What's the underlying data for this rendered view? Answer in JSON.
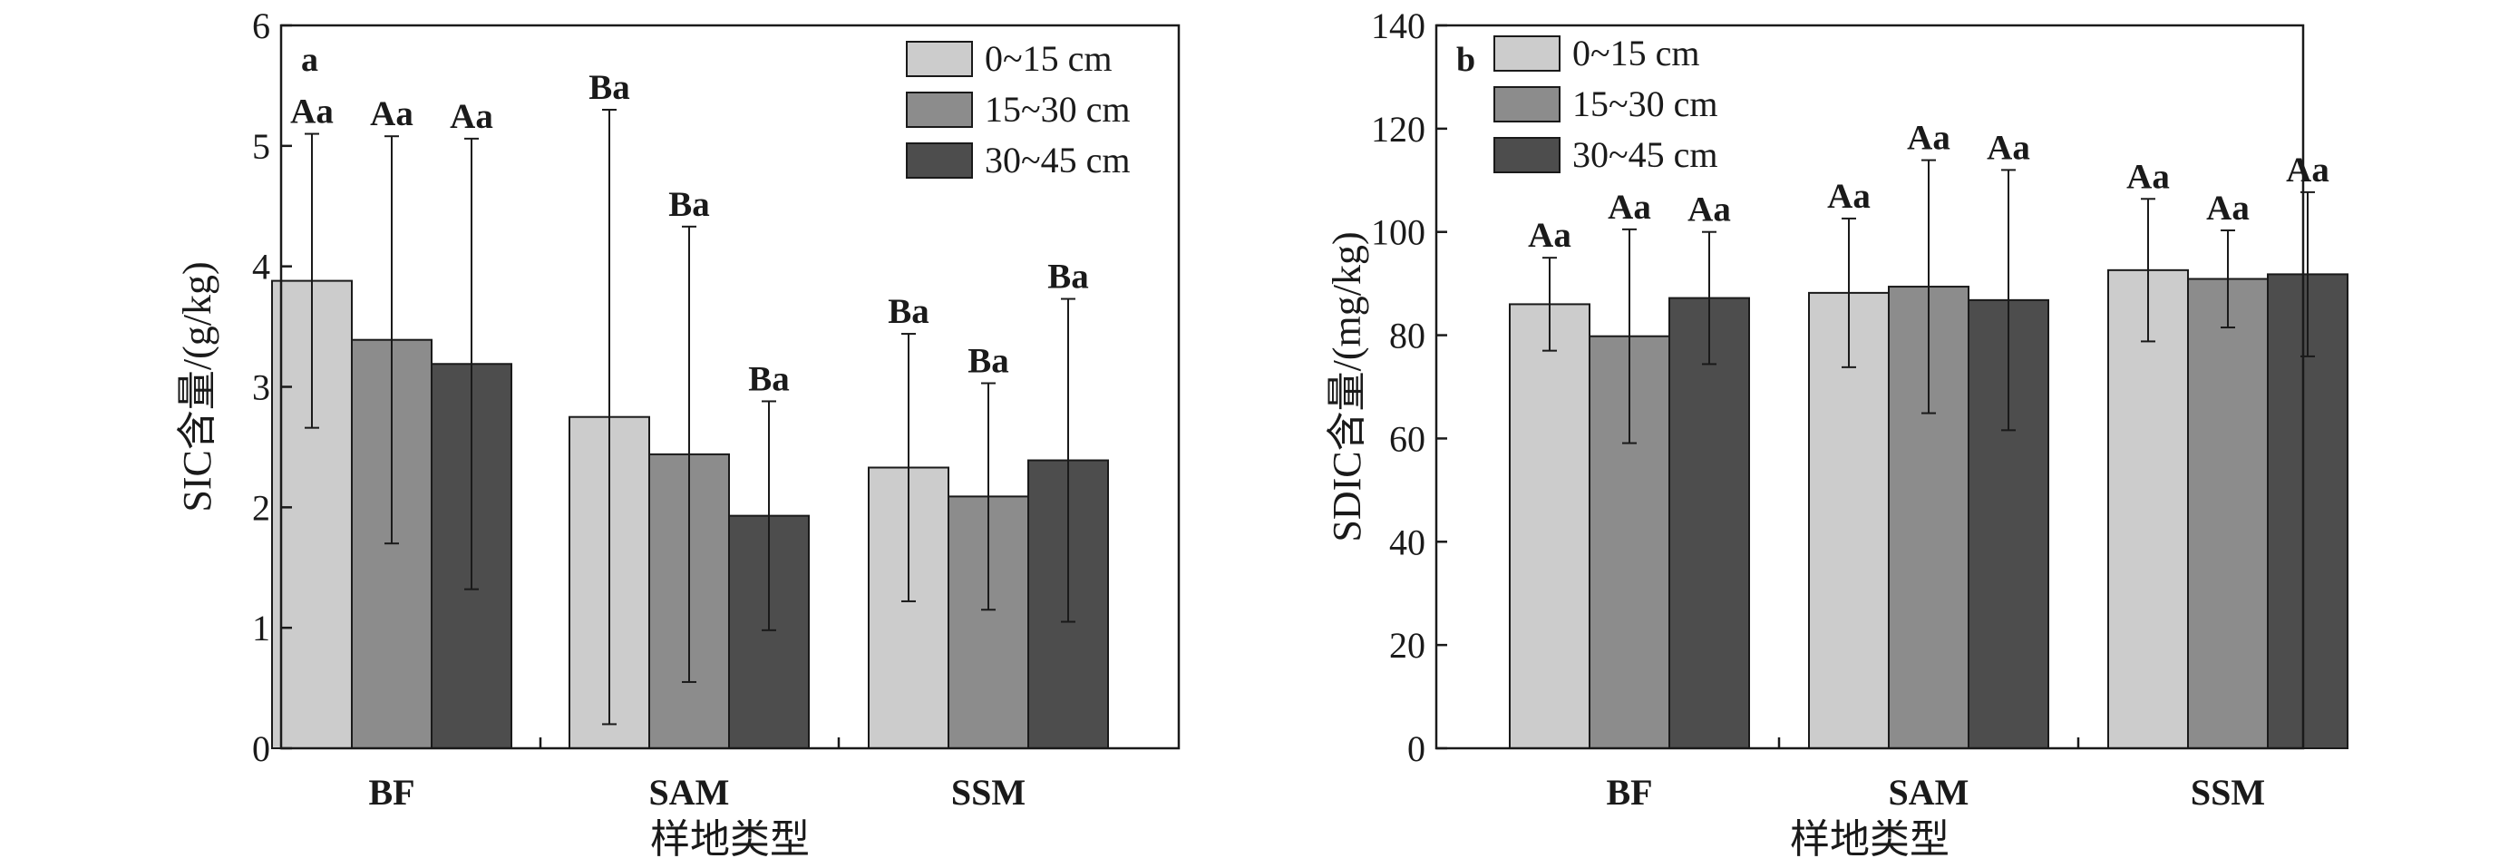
{
  "chart_data": [
    {
      "type": "bar",
      "panel_label": "a",
      "categories": [
        "BF",
        "SAM",
        "SSM"
      ],
      "series": [
        {
          "name": "0~15 cm",
          "color": "#cccccc",
          "values": [
            3.88,
            2.75,
            2.33
          ],
          "error": [
            1.22,
            2.55,
            1.11
          ]
        },
        {
          "name": "15~30 cm",
          "color": "#8c8c8c",
          "values": [
            3.39,
            2.44,
            2.09
          ],
          "error": [
            1.69,
            1.89,
            0.94
          ]
        },
        {
          "name": "30~45 cm",
          "color": "#4d4d4d",
          "values": [
            3.19,
            1.93,
            2.39
          ],
          "error": [
            1.87,
            0.95,
            1.34
          ]
        }
      ],
      "significance": [
        [
          "Aa",
          "Aa",
          "Aa"
        ],
        [
          "Ba",
          "Ba",
          "Ba"
        ],
        [
          "Ba",
          "Ba",
          "Ba"
        ]
      ],
      "xlabel": "样地类型",
      "ylabel": "SIC含量/(g/kg)",
      "ylim": [
        0,
        6
      ],
      "yticks": [
        0,
        1,
        2,
        3,
        4,
        5,
        6
      ],
      "legend_position": "top-right",
      "grid": false
    },
    {
      "type": "bar",
      "panel_label": "b",
      "categories": [
        "BF",
        "SAM",
        "SSM"
      ],
      "series": [
        {
          "name": "0~15 cm",
          "color": "#cccccc",
          "values": [
            86,
            88.2,
            92.6
          ],
          "error": [
            9,
            14.4,
            13.8
          ]
        },
        {
          "name": "15~30 cm",
          "color": "#8c8c8c",
          "values": [
            79.8,
            89.4,
            90.9
          ],
          "error": [
            20.7,
            24.5,
            9.4
          ]
        },
        {
          "name": "30~45 cm",
          "color": "#4d4d4d",
          "values": [
            87.2,
            86.8,
            91.8
          ],
          "error": [
            12.8,
            25.2,
            15.9
          ]
        }
      ],
      "significance": [
        [
          "Aa",
          "Aa",
          "Aa"
        ],
        [
          "Aa",
          "Aa",
          "Aa"
        ],
        [
          "Aa",
          "Aa",
          "Aa"
        ]
      ],
      "xlabel": "样地类型",
      "ylabel": "SDIC含量/(mg/kg)",
      "ylim": [
        0,
        140
      ],
      "yticks": [
        0,
        20,
        40,
        60,
        80,
        100,
        120,
        140
      ],
      "legend_position": "top-left",
      "grid": false
    }
  ]
}
